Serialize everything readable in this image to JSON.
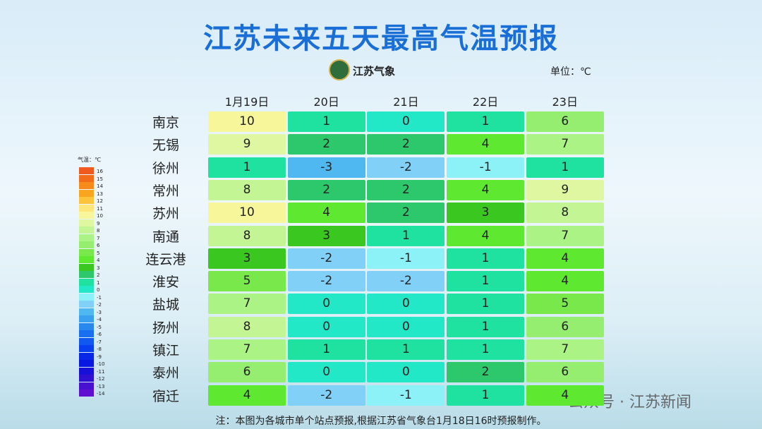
{
  "header": {
    "title": "江苏未来五天最高气温预报",
    "logo": "江苏气象",
    "unit": "单位：℃"
  },
  "table": {
    "columns": [
      "1月19日",
      "20日",
      "21日",
      "22日",
      "23日"
    ],
    "rows": [
      {
        "city": "南京",
        "values": [
          10,
          1,
          0,
          1,
          6
        ]
      },
      {
        "city": "无锡",
        "values": [
          9,
          2,
          2,
          4,
          7
        ]
      },
      {
        "city": "徐州",
        "values": [
          1,
          -3,
          -2,
          -1,
          1
        ]
      },
      {
        "city": "常州",
        "values": [
          8,
          2,
          2,
          4,
          9
        ]
      },
      {
        "city": "苏州",
        "values": [
          10,
          4,
          2,
          3,
          8
        ]
      },
      {
        "city": "南通",
        "values": [
          8,
          3,
          1,
          4,
          7
        ]
      },
      {
        "city": "连云港",
        "values": [
          3,
          -2,
          -1,
          1,
          4
        ]
      },
      {
        "city": "淮安",
        "values": [
          5,
          -2,
          -2,
          1,
          4
        ]
      },
      {
        "city": "盐城",
        "values": [
          7,
          0,
          0,
          1,
          5
        ]
      },
      {
        "city": "扬州",
        "values": [
          8,
          0,
          0,
          1,
          6
        ]
      },
      {
        "city": "镇江",
        "values": [
          7,
          1,
          1,
          1,
          7
        ]
      },
      {
        "city": "泰州",
        "values": [
          6,
          0,
          0,
          2,
          6
        ]
      },
      {
        "city": "宿迁",
        "values": [
          4,
          -2,
          -1,
          1,
          4
        ]
      }
    ]
  },
  "legend": {
    "title": "气温：℃",
    "items": [
      {
        "label": 16,
        "color": "#f05a1e"
      },
      {
        "label": 15,
        "color": "#f36c1a"
      },
      {
        "label": 14,
        "color": "#f68a1b"
      },
      {
        "label": 13,
        "color": "#f8a51f"
      },
      {
        "label": 12,
        "color": "#fbc43a"
      },
      {
        "label": 11,
        "color": "#fde77a"
      },
      {
        "label": 10,
        "color": "#f7f69a"
      },
      {
        "label": 9,
        "color": "#dff7a0"
      },
      {
        "label": 8,
        "color": "#c4f594"
      },
      {
        "label": 7,
        "color": "#acf386"
      },
      {
        "label": 6,
        "color": "#96ee70"
      },
      {
        "label": 5,
        "color": "#78e84a"
      },
      {
        "label": 4,
        "color": "#5ee830"
      },
      {
        "label": 3,
        "color": "#3ac820"
      },
      {
        "label": 2,
        "color": "#2ec86c"
      },
      {
        "label": 1,
        "color": "#20e2a0"
      },
      {
        "label": 0,
        "color": "#22e8c8"
      },
      {
        "label": -1,
        "color": "#8cf2f8"
      },
      {
        "label": -2,
        "color": "#80d0f8"
      },
      {
        "label": -3,
        "color": "#50b8f0"
      },
      {
        "label": -4,
        "color": "#3aa0f0"
      },
      {
        "label": -5,
        "color": "#2888f0"
      },
      {
        "label": -6,
        "color": "#1870f0"
      },
      {
        "label": -7,
        "color": "#1058f0"
      },
      {
        "label": -8,
        "color": "#0840f0"
      },
      {
        "label": -9,
        "color": "#0828e8"
      },
      {
        "label": -10,
        "color": "#0818e0"
      },
      {
        "label": -11,
        "color": "#1810d8"
      },
      {
        "label": -12,
        "color": "#3010d0"
      },
      {
        "label": -13,
        "color": "#4810d0"
      },
      {
        "label": -14,
        "color": "#6010d0"
      }
    ]
  },
  "footnote": "注：本图为各城市单个站点预报,根据江苏省气象台1月18日16时预报制作。",
  "watermark": "公众号 · 江苏新闻"
}
